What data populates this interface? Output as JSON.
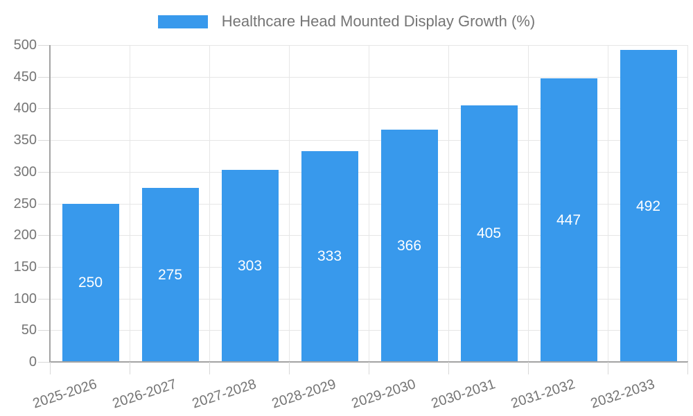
{
  "legend": {
    "label": "Healthcare Head Mounted Display Growth (%)"
  },
  "chart_data": {
    "type": "bar",
    "title": "Healthcare Head Mounted Display Growth (%)",
    "categories": [
      "2025-2026",
      "2026-2027",
      "2027-2028",
      "2028-2029",
      "2029-2030",
      "2030-2031",
      "2031-2032",
      "2032-2033"
    ],
    "values": [
      250,
      275,
      303,
      333,
      366,
      405,
      447,
      492
    ],
    "xlabel": "",
    "ylabel": "",
    "ylim": [
      0,
      500
    ],
    "ytick_step": 50,
    "grid": true,
    "legend_position": "top",
    "colors": {
      "bar": "#3899ec",
      "bar_label": "#ffffff",
      "grid": "#e6e6e6",
      "axis": "#a3a3a3",
      "tick": "#d8d8d8",
      "text": "#757575"
    },
    "x_label_rotation_deg": -18
  }
}
